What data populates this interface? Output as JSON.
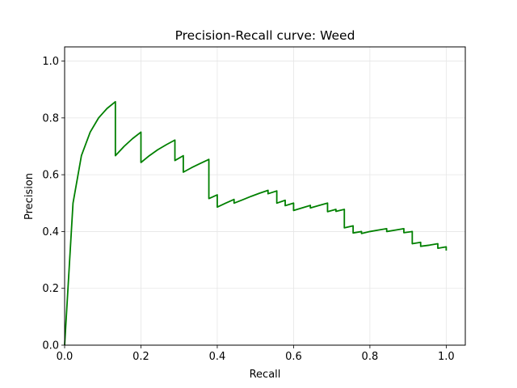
{
  "chart_data": {
    "type": "line",
    "title": "Precision-Recall curve: Weed",
    "xlabel": "Recall",
    "ylabel": "Precision",
    "xlim": [
      0.0,
      1.05
    ],
    "ylim": [
      0.0,
      1.05
    ],
    "xticks": [
      "0.0",
      "0.2",
      "0.4",
      "0.6",
      "0.8",
      "1.0"
    ],
    "yticks": [
      "0.0",
      "0.2",
      "0.4",
      "0.6",
      "0.8",
      "1.0"
    ],
    "grid": true,
    "series": [
      {
        "color": "#008000",
        "x": [
          0.0,
          0.022,
          0.044,
          0.067,
          0.089,
          0.111,
          0.133,
          0.133,
          0.156,
          0.178,
          0.2,
          0.2,
          0.222,
          0.244,
          0.267,
          0.289,
          0.289,
          0.311,
          0.311,
          0.333,
          0.356,
          0.378,
          0.378,
          0.4,
          0.4,
          0.422,
          0.444,
          0.444,
          0.467,
          0.489,
          0.511,
          0.533,
          0.533,
          0.556,
          0.556,
          0.578,
          0.578,
          0.6,
          0.6,
          0.622,
          0.644,
          0.644,
          0.667,
          0.689,
          0.689,
          0.711,
          0.711,
          0.733,
          0.733,
          0.756,
          0.756,
          0.778,
          0.778,
          0.8,
          0.822,
          0.844,
          0.844,
          0.867,
          0.889,
          0.889,
          0.911,
          0.911,
          0.933,
          0.933,
          0.956,
          0.978,
          0.978,
          1.0,
          1.0
        ],
        "y": [
          0.0,
          0.5,
          0.667,
          0.75,
          0.8,
          0.833,
          0.857,
          0.667,
          0.7,
          0.727,
          0.75,
          0.643,
          0.667,
          0.688,
          0.706,
          0.722,
          0.65,
          0.667,
          0.609,
          0.625,
          0.64,
          0.654,
          0.516,
          0.529,
          0.486,
          0.5,
          0.513,
          0.5,
          0.512,
          0.524,
          0.535,
          0.545,
          0.533,
          0.543,
          0.5,
          0.51,
          0.491,
          0.5,
          0.474,
          0.483,
          0.492,
          0.483,
          0.492,
          0.5,
          0.47,
          0.478,
          0.471,
          0.478,
          0.413,
          0.42,
          0.395,
          0.4,
          0.393,
          0.4,
          0.405,
          0.41,
          0.4,
          0.405,
          0.41,
          0.396,
          0.4,
          0.357,
          0.362,
          0.348,
          0.352,
          0.357,
          0.341,
          0.346,
          0.333
        ]
      }
    ]
  }
}
